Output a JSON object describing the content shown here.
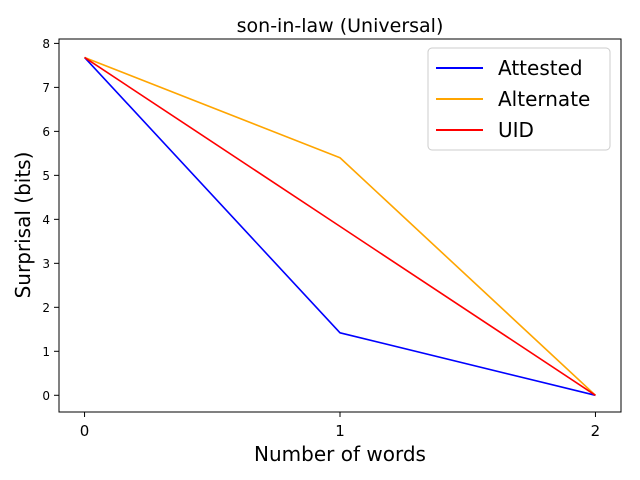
{
  "chart_data": {
    "type": "line",
    "title": "son-in-law (Universal)",
    "xlabel": "Number of words",
    "ylabel": "Surprisal (bits)",
    "x": [
      0,
      1,
      2
    ],
    "xticks": [
      "0",
      "1",
      "2"
    ],
    "yticks": [
      "0",
      "1",
      "2",
      "3",
      "4",
      "5",
      "6",
      "7",
      "8"
    ],
    "xlim": [
      -0.1,
      2.1
    ],
    "ylim": [
      -0.38,
      8.1
    ],
    "grid": false,
    "legend_position": "top-right",
    "series": [
      {
        "name": "Attested",
        "color": "#0000ff",
        "values": [
          7.68,
          1.42,
          0.0
        ]
      },
      {
        "name": "Alternate",
        "color": "#ffa500",
        "values": [
          7.68,
          5.4,
          0.0
        ]
      },
      {
        "name": "UID",
        "color": "#ff0000",
        "values": [
          7.68,
          3.84,
          0.0
        ]
      }
    ]
  }
}
